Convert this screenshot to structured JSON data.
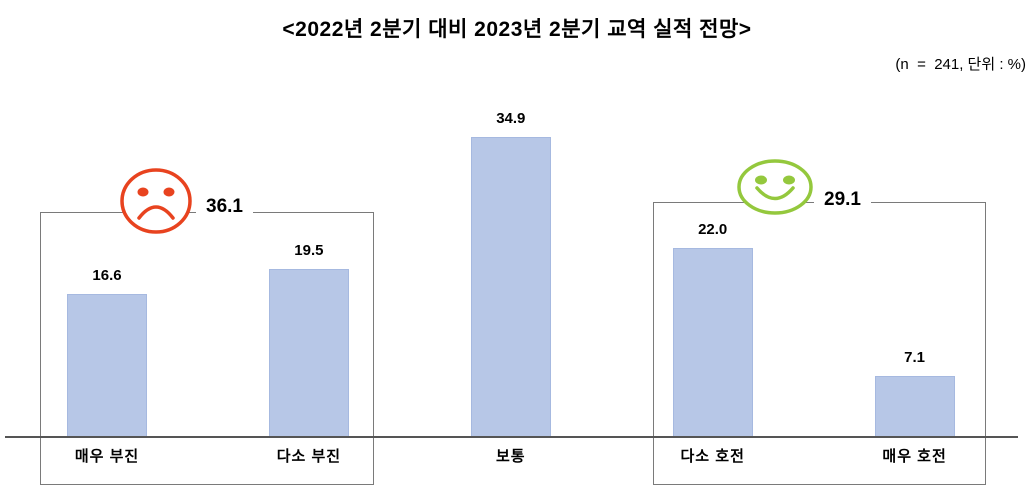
{
  "title": "<2022년 2분기 대비 2023년 2분기 교역 실적 전망>",
  "note": "(n  =  241, 단위 : %)",
  "chart_data": {
    "type": "bar",
    "title": "2022년 2분기 대비 2023년 2분기 교역 실적 전망",
    "sample_size_note": "(n = 241, 단위 : %)",
    "unit": "%",
    "n": 241,
    "categories": [
      "매우 부진",
      "다소 부진",
      "보통",
      "다소 호전",
      "매우 호전"
    ],
    "values": [
      16.6,
      19.5,
      34.9,
      22.0,
      7.1
    ],
    "xlabel": "",
    "ylabel": "",
    "ylim": [
      0,
      40
    ],
    "grid": false,
    "legend": false,
    "value_labels_shown": true,
    "groups": [
      {
        "label": "36.1",
        "categories": [
          "매우 부진",
          "다소 부진"
        ],
        "sentiment": "negative",
        "icon": "sad-face-icon"
      },
      {
        "label": "29.1",
        "categories": [
          "다소 호전",
          "매우 호전"
        ],
        "sentiment": "positive",
        "icon": "smiley-face-icon"
      }
    ],
    "colors": {
      "bar": "#b7c7e7",
      "bar_border": "#a6b9e0",
      "negative": "#e8431f",
      "positive": "#94c83d",
      "axis": "#555555",
      "box": "#7a7a7a"
    }
  }
}
